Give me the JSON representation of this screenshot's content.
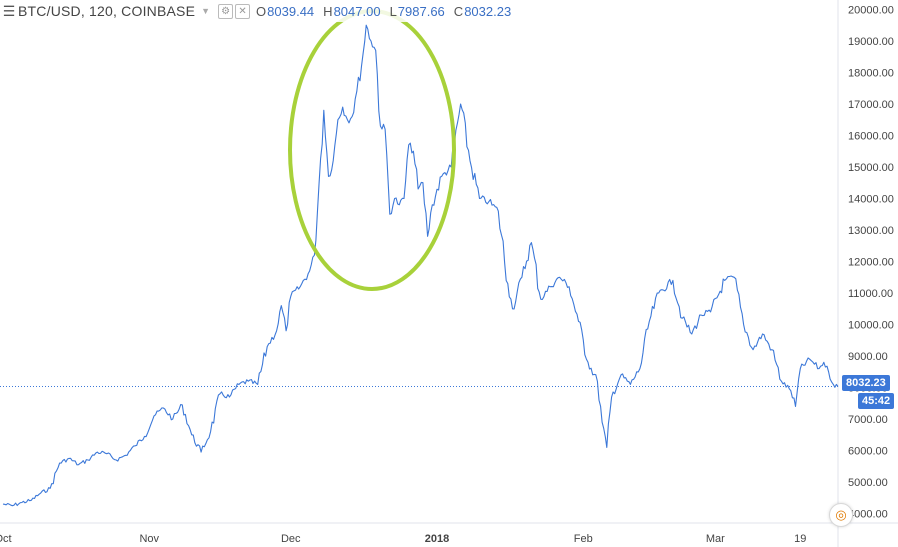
{
  "legend": {
    "menu_icon": "hamburger-icon",
    "symbol": "BTC/USD, 120, COINBASE",
    "open_key": "O",
    "open": "8039.44",
    "high_key": "H",
    "high": "8047.00",
    "low_key": "L",
    "low": "7987.66",
    "close_key": "C",
    "close": "8032.23"
  },
  "badges": {
    "price": "8032.23",
    "timer": "45:42"
  },
  "colors": {
    "line": "#3c78d8",
    "highlight": "#a8d13a",
    "price_line": "#3c78d8",
    "axis_text": "#444444"
  },
  "chart_data": {
    "type": "line",
    "ylim": [
      3700,
      20300
    ],
    "yticks": [
      "20000.00",
      "19000.00",
      "18000.00",
      "17000.00",
      "16000.00",
      "15000.00",
      "14000.00",
      "13000.00",
      "12000.00",
      "11000.00",
      "10000.00",
      "9000.00",
      "8000.00",
      "7000.00",
      "6000.00",
      "5000.00",
      "4000.00"
    ],
    "xticks": [
      {
        "label": "Oct",
        "date": "2017-10-01"
      },
      {
        "label": "Nov",
        "date": "2017-11-01"
      },
      {
        "label": "Dec",
        "date": "2017-12-01"
      },
      {
        "label": "2018",
        "date": "2018-01-01",
        "bold": true
      },
      {
        "label": "Feb",
        "date": "2018-02-01"
      },
      {
        "label": "Mar",
        "date": "2018-03-01"
      },
      {
        "label": "19",
        "date": "2018-03-19"
      }
    ],
    "current_price": 8032.23,
    "series": [
      {
        "points": [
          [
            "2017-10-01",
            4300
          ],
          [
            "2017-10-03",
            4250
          ],
          [
            "2017-10-05",
            4350
          ],
          [
            "2017-10-07",
            4420
          ],
          [
            "2017-10-09",
            4650
          ],
          [
            "2017-10-11",
            4800
          ],
          [
            "2017-10-13",
            5600
          ],
          [
            "2017-10-15",
            5750
          ],
          [
            "2017-10-17",
            5550
          ],
          [
            "2017-10-19",
            5700
          ],
          [
            "2017-10-21",
            5950
          ],
          [
            "2017-10-23",
            5900
          ],
          [
            "2017-10-25",
            5700
          ],
          [
            "2017-10-27",
            5850
          ],
          [
            "2017-10-29",
            6150
          ],
          [
            "2017-10-31",
            6450
          ],
          [
            "2017-11-02",
            7100
          ],
          [
            "2017-11-04",
            7350
          ],
          [
            "2017-11-06",
            7000
          ],
          [
            "2017-11-08",
            7450
          ],
          [
            "2017-11-10",
            6500
          ],
          [
            "2017-11-12",
            5950
          ],
          [
            "2017-11-14",
            6600
          ],
          [
            "2017-11-16",
            7800
          ],
          [
            "2017-11-18",
            7700
          ],
          [
            "2017-11-20",
            8100
          ],
          [
            "2017-11-22",
            8200
          ],
          [
            "2017-11-24",
            8100
          ],
          [
            "2017-11-26",
            9300
          ],
          [
            "2017-11-28",
            9800
          ],
          [
            "2017-11-29",
            10600
          ],
          [
            "2017-11-30",
            9800
          ],
          [
            "2017-12-01",
            10900
          ],
          [
            "2017-12-03",
            11200
          ],
          [
            "2017-12-05",
            11700
          ],
          [
            "2017-12-06",
            12200
          ],
          [
            "2017-12-07",
            14500
          ],
          [
            "2017-12-08",
            16800
          ],
          [
            "2017-12-09",
            14700
          ],
          [
            "2017-12-10",
            15200
          ],
          [
            "2017-12-11",
            16500
          ],
          [
            "2017-12-12",
            16900
          ],
          [
            "2017-12-13",
            16500
          ],
          [
            "2017-12-14",
            16600
          ],
          [
            "2017-12-15",
            17400
          ],
          [
            "2017-12-16",
            18200
          ],
          [
            "2017-12-17",
            19500
          ],
          [
            "2017-12-18",
            19000
          ],
          [
            "2017-12-19",
            18700
          ],
          [
            "2017-12-20",
            16300
          ],
          [
            "2017-12-21",
            16200
          ],
          [
            "2017-12-22",
            13500
          ],
          [
            "2017-12-23",
            14000
          ],
          [
            "2017-12-24",
            13800
          ],
          [
            "2017-12-25",
            14000
          ],
          [
            "2017-12-26",
            15700
          ],
          [
            "2017-12-27",
            15500
          ],
          [
            "2017-12-28",
            14300
          ],
          [
            "2017-12-29",
            14500
          ],
          [
            "2017-12-30",
            12800
          ],
          [
            "2017-12-31",
            13800
          ],
          [
            "2018-01-02",
            14700
          ],
          [
            "2018-01-04",
            15000
          ],
          [
            "2018-01-06",
            17000
          ],
          [
            "2018-01-08",
            15200
          ],
          [
            "2018-01-10",
            14000
          ],
          [
            "2018-01-12",
            13900
          ],
          [
            "2018-01-14",
            13600
          ],
          [
            "2018-01-16",
            11300
          ],
          [
            "2018-01-17",
            10500
          ],
          [
            "2018-01-19",
            11500
          ],
          [
            "2018-01-21",
            12600
          ],
          [
            "2018-01-23",
            10800
          ],
          [
            "2018-01-25",
            11200
          ],
          [
            "2018-01-27",
            11500
          ],
          [
            "2018-01-29",
            11200
          ],
          [
            "2018-01-31",
            10100
          ],
          [
            "2018-02-02",
            8800
          ],
          [
            "2018-02-04",
            8200
          ],
          [
            "2018-02-05",
            6900
          ],
          [
            "2018-02-06",
            6100
          ],
          [
            "2018-02-07",
            7700
          ],
          [
            "2018-02-09",
            8400
          ],
          [
            "2018-02-11",
            8100
          ],
          [
            "2018-02-13",
            8600
          ],
          [
            "2018-02-15",
            10100
          ],
          [
            "2018-02-17",
            11000
          ],
          [
            "2018-02-20",
            11400
          ],
          [
            "2018-02-22",
            10200
          ],
          [
            "2018-02-24",
            9700
          ],
          [
            "2018-02-26",
            10300
          ],
          [
            "2018-02-28",
            10400
          ],
          [
            "2018-03-03",
            11400
          ],
          [
            "2018-03-05",
            11500
          ],
          [
            "2018-03-07",
            10000
          ],
          [
            "2018-03-09",
            9200
          ],
          [
            "2018-03-11",
            9700
          ],
          [
            "2018-03-13",
            9200
          ],
          [
            "2018-03-15",
            8200
          ],
          [
            "2018-03-17",
            7900
          ],
          [
            "2018-03-18",
            7400
          ],
          [
            "2018-03-19",
            8600
          ],
          [
            "2018-03-21",
            8900
          ],
          [
            "2018-03-23",
            8600
          ],
          [
            "2018-03-24",
            8800
          ],
          [
            "2018-03-25",
            8500
          ],
          [
            "2018-03-26",
            8100
          ],
          [
            "2018-03-27",
            8032
          ]
        ]
      }
    ]
  }
}
